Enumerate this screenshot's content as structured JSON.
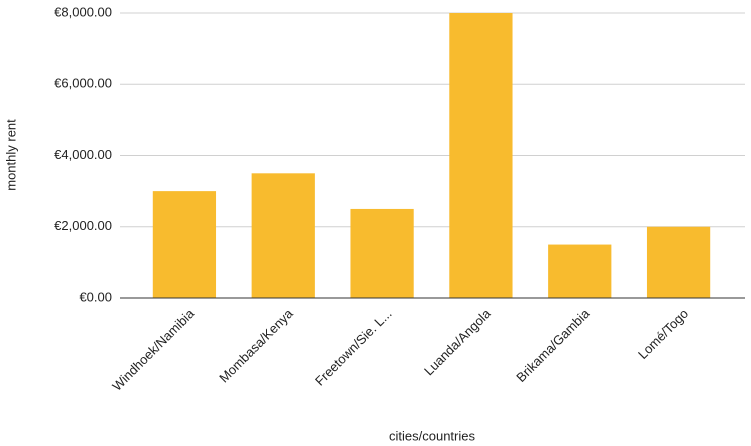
{
  "chart_data": {
    "type": "bar",
    "x_label": "cities/countries",
    "y_label": "monthly rent",
    "categories": [
      "Windhoek/Namibia",
      "Mombasa/Kenya",
      "Freetown/Sie. L...",
      "Luanda/Angola",
      "Brikama/Gambia",
      "Lomé/Togo"
    ],
    "values": [
      3000,
      3500,
      2500,
      8000,
      1500,
      2000
    ],
    "color": "#f8bb2e",
    "ylim": [
      0,
      8000
    ],
    "yticks": [
      {
        "value": 0,
        "label": "€0.00"
      },
      {
        "value": 2000,
        "label": "€2,000.00"
      },
      {
        "value": 4000,
        "label": "€4,000.00"
      },
      {
        "value": 6000,
        "label": "€6,000.00"
      },
      {
        "value": 8000,
        "label": "€8,000.00"
      }
    ],
    "grid": true
  }
}
